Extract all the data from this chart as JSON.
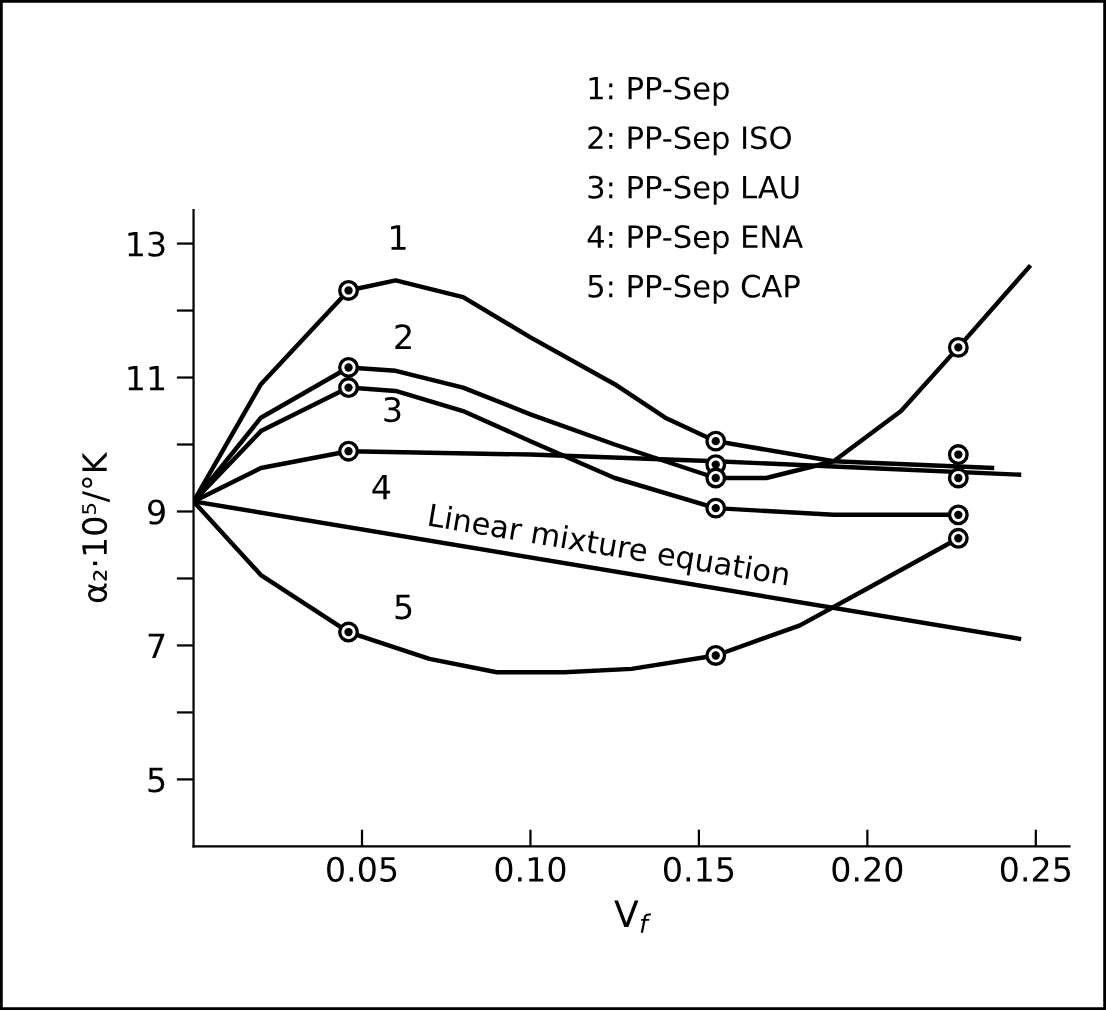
{
  "chart_data": {
    "type": "line",
    "xlabel": "V$_{f}$",
    "ylabel": "α₂·10⁵/°K",
    "xlim": [
      0,
      0.26
    ],
    "ylim": [
      4,
      13.5
    ],
    "xticks": [
      0.05,
      {
        "value": 0.1,
        "label": "0.10"
      },
      0.15,
      {
        "value": 0.2,
        "label": "0.20"
      },
      0.25
    ],
    "yticks": [
      5,
      {
        "value": 6,
        "label": null
      },
      7,
      {
        "value": 8,
        "label": null
      },
      9,
      {
        "value": 10,
        "label": null
      },
      11,
      {
        "value": 12,
        "label": null
      },
      13
    ],
    "grid": false,
    "legend": false,
    "line_style": "solid",
    "series": [
      {
        "name": "1",
        "color": "#000000",
        "x": [
          0,
          0.02,
          0.046,
          0.06,
          0.08,
          0.1,
          0.125,
          0.14,
          0.155,
          0.19,
          0.237
        ],
        "values": [
          9.15,
          10.9,
          12.3,
          12.45,
          12.2,
          11.6,
          10.9,
          10.4,
          10.05,
          9.75,
          9.65
        ]
      },
      {
        "name": "2",
        "color": "#000000",
        "x": [
          0,
          0.02,
          0.046,
          0.06,
          0.08,
          0.1,
          0.125,
          0.155,
          0.17,
          0.19,
          0.21,
          0.227,
          0.248
        ],
        "values": [
          9.15,
          10.4,
          11.15,
          11.1,
          10.85,
          10.45,
          10.0,
          9.5,
          9.5,
          9.75,
          10.5,
          11.45,
          12.65
        ]
      },
      {
        "name": "3",
        "color": "#000000",
        "x": [
          0,
          0.02,
          0.046,
          0.06,
          0.08,
          0.1,
          0.125,
          0.155,
          0.19,
          0.227
        ],
        "values": [
          9.15,
          10.2,
          10.85,
          10.8,
          10.5,
          10.05,
          9.5,
          9.05,
          8.95,
          8.95
        ]
      },
      {
        "name": "4",
        "color": "#000000",
        "x": [
          0,
          0.02,
          0.046,
          0.1,
          0.155,
          0.2,
          0.245
        ],
        "values": [
          9.15,
          9.65,
          9.9,
          9.85,
          9.75,
          9.65,
          9.55
        ]
      },
      {
        "name": "5",
        "color": "#000000",
        "x": [
          0,
          0.02,
          0.046,
          0.07,
          0.09,
          0.11,
          0.13,
          0.155,
          0.18,
          0.2,
          0.227
        ],
        "values": [
          9.15,
          8.05,
          7.2,
          6.8,
          6.6,
          6.6,
          6.65,
          6.85,
          7.3,
          7.85,
          8.6
        ]
      },
      {
        "name": "Linear mixture equation",
        "color": "#000000",
        "x": [
          0,
          0.245
        ],
        "values": [
          9.15,
          7.1
        ]
      },
      {
        "type": "scatter",
        "marker": "circle",
        "color": "#000000",
        "x": [
          0.046,
          0.046,
          0.046,
          0.046,
          0.046,
          0.155,
          0.155,
          0.155,
          0.155,
          0.155,
          0.227,
          0.227,
          0.227,
          0.227,
          0.227
        ],
        "values": [
          12.3,
          11.15,
          10.85,
          9.9,
          7.2,
          10.05,
          9.7,
          9.5,
          9.05,
          6.85,
          11.45,
          9.85,
          9.5,
          8.95,
          8.6
        ]
      }
    ],
    "annotations": [
      "1: PP-Sep",
      "2: PP-Sep ISO",
      "3: PP-Sep LAU",
      "4: PP-Sep ENA",
      "5: PP-Sep CAP"
    ]
  }
}
